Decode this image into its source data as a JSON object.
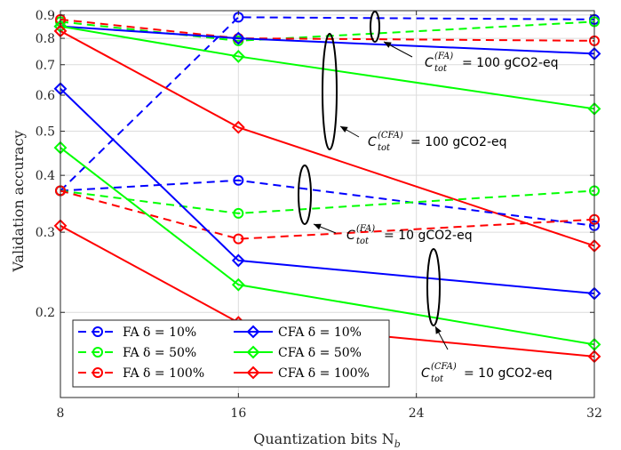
{
  "chart_data": {
    "type": "line",
    "xlabel": "Quantization bits N",
    "xlabel_sub": "b",
    "ylabel": "Validation accuracy",
    "x_scale": "linear",
    "y_scale": "log",
    "xlim": [
      8,
      32
    ],
    "ylim": [
      0.13,
      0.92
    ],
    "x_ticks": [
      8,
      16,
      24,
      32
    ],
    "y_ticks": [
      0.2,
      0.3,
      0.4,
      0.5,
      0.6,
      0.7,
      0.8,
      0.9
    ],
    "grid": true,
    "legend_placement": "bottom-left",
    "x": [
      8,
      16,
      32
    ],
    "series": [
      {
        "name": "FA δ = 10%",
        "group": "FA",
        "delta": "10%",
        "color": "#0000ff",
        "dash": true,
        "marker": "circle",
        "values": [
          0.37,
          0.89,
          0.88
        ],
        "budget": "100 gCO2-eq"
      },
      {
        "name": "FA δ = 50%",
        "group": "FA",
        "delta": "50%",
        "color": "#00ff00",
        "dash": true,
        "marker": "circle",
        "values": [
          0.87,
          0.79,
          0.87
        ],
        "budget": "100 gCO2-eq"
      },
      {
        "name": "FA δ = 100%",
        "group": "FA",
        "delta": "100%",
        "color": "#ff0000",
        "dash": true,
        "marker": "circle",
        "values": [
          0.88,
          0.8,
          0.79
        ],
        "budget": "100 gCO2-eq"
      },
      {
        "name": "CFA δ = 10%",
        "group": "CFA",
        "delta": "10%",
        "color": "#0000ff",
        "dash": false,
        "marker": "diamond",
        "values": [
          0.85,
          0.8,
          0.74
        ],
        "budget": "100 gCO2-eq"
      },
      {
        "name": "CFA δ = 50%",
        "group": "CFA",
        "delta": "50%",
        "color": "#00ff00",
        "dash": false,
        "marker": "diamond",
        "values": [
          0.85,
          0.73,
          0.56
        ],
        "budget": "100 gCO2-eq"
      },
      {
        "name": "CFA δ = 100%",
        "group": "CFA",
        "delta": "100%",
        "color": "#ff0000",
        "dash": false,
        "marker": "diamond",
        "values": [
          0.83,
          0.51,
          0.28
        ],
        "budget": "100 gCO2-eq"
      },
      {
        "name": "FA δ = 10%",
        "group": "FA",
        "delta": "10%",
        "color": "#0000ff",
        "dash": true,
        "marker": "circle",
        "values": [
          0.37,
          0.39,
          0.31
        ],
        "budget": "10 gCO2-eq"
      },
      {
        "name": "FA δ = 50%",
        "group": "FA",
        "delta": "50%",
        "color": "#00ff00",
        "dash": true,
        "marker": "circle",
        "values": [
          0.37,
          0.33,
          0.37
        ],
        "budget": "10 gCO2-eq"
      },
      {
        "name": "FA δ = 100%",
        "group": "FA",
        "delta": "100%",
        "color": "#ff0000",
        "dash": true,
        "marker": "circle",
        "values": [
          0.37,
          0.29,
          0.32
        ],
        "budget": "10 gCO2-eq"
      },
      {
        "name": "CFA δ = 10%",
        "group": "CFA",
        "delta": "10%",
        "color": "#0000ff",
        "dash": false,
        "marker": "diamond",
        "values": [
          0.62,
          0.26,
          0.22
        ],
        "budget": "10 gCO2-eq"
      },
      {
        "name": "CFA δ = 50%",
        "group": "CFA",
        "delta": "50%",
        "color": "#00ff00",
        "dash": false,
        "marker": "diamond",
        "values": [
          0.46,
          0.23,
          0.17
        ],
        "budget": "10 gCO2-eq"
      },
      {
        "name": "CFA δ = 100%",
        "group": "CFA",
        "delta": "100%",
        "color": "#ff0000",
        "dash": false,
        "marker": "diamond",
        "values": [
          0.31,
          0.19,
          0.16
        ],
        "budget": "10 gCO2-eq"
      }
    ],
    "legend": [
      {
        "label": "FA δ = 10%",
        "color": "#0000ff",
        "dash": true,
        "marker": "circle"
      },
      {
        "label": "CFA δ = 10%",
        "color": "#0000ff",
        "dash": false,
        "marker": "diamond"
      },
      {
        "label": "FA δ = 50%",
        "color": "#00ff00",
        "dash": true,
        "marker": "circle"
      },
      {
        "label": "CFA δ = 50%",
        "color": "#00ff00",
        "dash": false,
        "marker": "diamond"
      },
      {
        "label": "FA δ = 100%",
        "color": "#ff0000",
        "dash": true,
        "marker": "circle"
      },
      {
        "label": "CFA δ = 100%",
        "color": "#ff0000",
        "dash": false,
        "marker": "diamond"
      }
    ],
    "annotations": [
      {
        "base": "C",
        "sub": "tot",
        "sup": "(FA)",
        "text": "= 100 gCO2-eq"
      },
      {
        "base": "C",
        "sub": "tot",
        "sup": "(CFA)",
        "text": "= 100 gCO2-eq"
      },
      {
        "base": "C",
        "sub": "tot",
        "sup": "(FA)",
        "text": "= 10 gCO2-eq"
      },
      {
        "base": "C",
        "sub": "tot",
        "sup": "(CFA)",
        "text": "= 10 gCO2-eq"
      }
    ]
  }
}
